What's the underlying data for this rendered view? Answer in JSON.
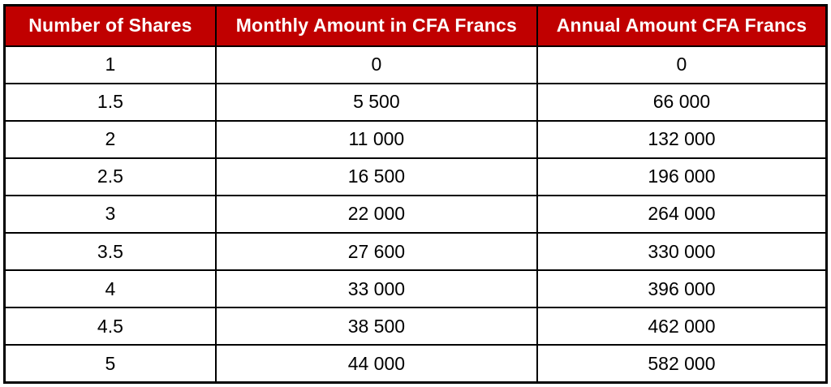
{
  "table": {
    "headers": [
      "Number of Shares",
      "Monthly Amount in CFA Francs",
      "Annual Amount CFA Francs"
    ],
    "rows": [
      [
        "1",
        "0",
        "0"
      ],
      [
        "1.5",
        "5 500",
        "66 000"
      ],
      [
        "2",
        "11 000",
        "132 000"
      ],
      [
        "2.5",
        "16 500",
        "196 000"
      ],
      [
        "3",
        "22 000",
        "264 000"
      ],
      [
        "3.5",
        "27 600",
        "330 000"
      ],
      [
        "4",
        "33 000",
        "396 000"
      ],
      [
        "4.5",
        "38 500",
        "462 000"
      ],
      [
        "5",
        "44 000",
        "582 000"
      ]
    ]
  },
  "colors": {
    "header_background": "#C00000",
    "header_text": "#FFFFFF",
    "body_text": "#000000",
    "border": "#000000"
  },
  "chart_data": {
    "type": "table",
    "title": "",
    "columns": [
      "Number of Shares",
      "Monthly Amount in CFA Francs",
      "Annual Amount CFA Francs"
    ],
    "rows": [
      [
        "1",
        "0",
        "0"
      ],
      [
        "1.5",
        "5 500",
        "66 000"
      ],
      [
        "2",
        "11 000",
        "132 000"
      ],
      [
        "2.5",
        "16 500",
        "196 000"
      ],
      [
        "3",
        "22 000",
        "264 000"
      ],
      [
        "3.5",
        "27 600",
        "330 000"
      ],
      [
        "4",
        "33 000",
        "396 000"
      ],
      [
        "4.5",
        "38 500",
        "462 000"
      ],
      [
        "5",
        "44 000",
        "582 000"
      ]
    ],
    "notes": "Numbers use space as thousands separator; header row has dark red fill with white bold text; black gridlines"
  }
}
